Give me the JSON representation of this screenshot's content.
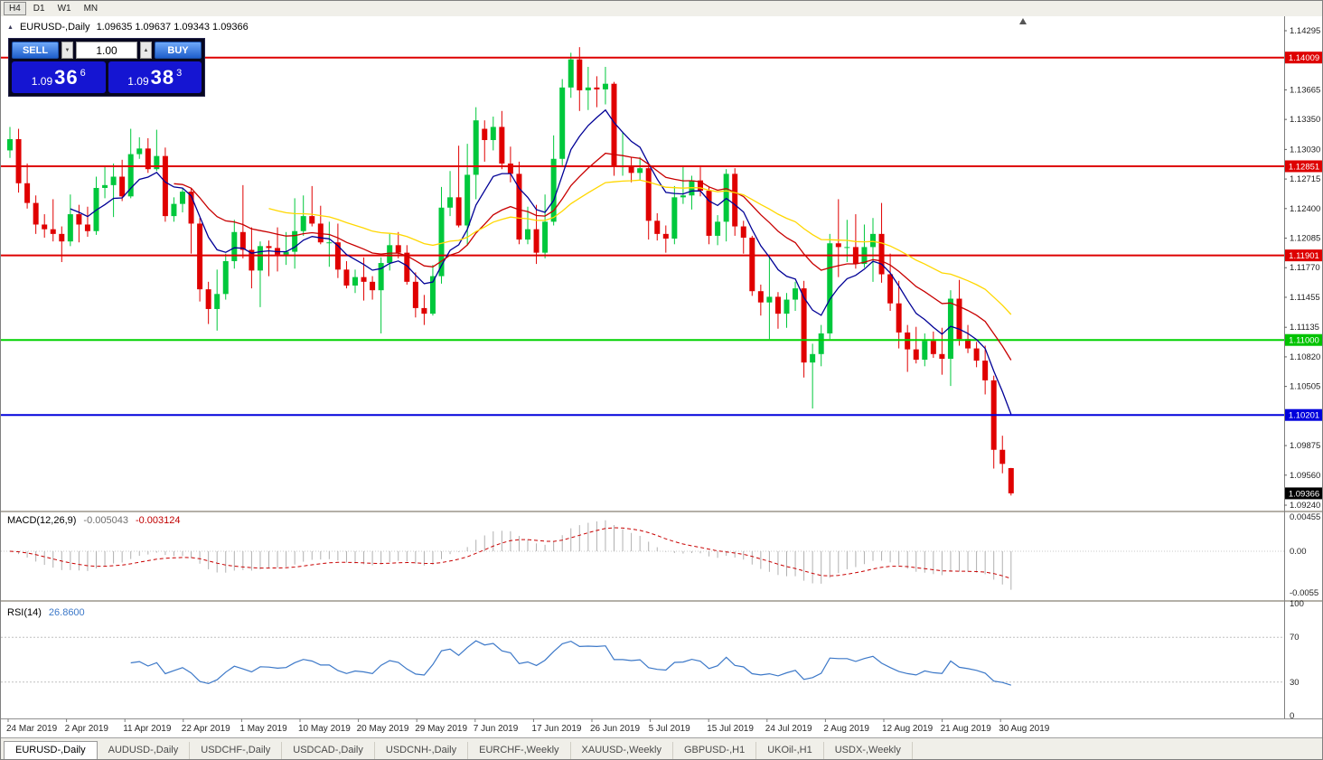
{
  "toolbar": {
    "timeframes": [
      {
        "label": "H4",
        "active": true
      },
      {
        "label": "D1",
        "active": false
      },
      {
        "label": "W1",
        "active": false
      },
      {
        "label": "MN",
        "active": false
      }
    ]
  },
  "icons": {
    "panel_collapse": "▲",
    "volume_down": "▼",
    "volume_up": "▲"
  },
  "chart": {
    "title": {
      "symbol_period": "EURUSD-,Daily",
      "ohlc": "1.09635 1.09637 1.09343 1.09366"
    }
  },
  "trade_panel": {
    "sell_label": "SELL",
    "buy_label": "BUY",
    "volume": "1.00",
    "bid": {
      "big": "1.09",
      "pips": "36",
      "pipette": "6"
    },
    "ask": {
      "big": "1.09",
      "pips": "38",
      "pipette": "3"
    }
  },
  "indicators": {
    "macd": {
      "name": "MACD(12,26,9)",
      "value_main": "-0.005043",
      "value_signal": "-0.003124"
    },
    "rsi": {
      "name": "RSI(14)",
      "value": "26.8600"
    }
  },
  "price_axis": {
    "ticks": [
      "1.14295",
      "1.13665",
      "1.13350",
      "1.13030",
      "1.12715",
      "1.12400",
      "1.12085",
      "1.11770",
      "1.11455",
      "1.11135",
      "1.10820",
      "1.10505",
      "1.09875",
      "1.09560",
      "1.09240"
    ],
    "badges": [
      {
        "label": "1.14009",
        "price": 1.14009,
        "bg": "#DE0000",
        "fg": "#ffffff"
      },
      {
        "label": "1.12851",
        "price": 1.12851,
        "bg": "#DE0000",
        "fg": "#ffffff"
      },
      {
        "label": "1.11901",
        "price": 1.11901,
        "bg": "#DE0000",
        "fg": "#ffffff"
      },
      {
        "label": "1.11000",
        "price": 1.11,
        "bg": "#00C300",
        "fg": "#ffffff"
      },
      {
        "label": "1.10201",
        "price": 1.10201,
        "bg": "#0000DC",
        "fg": "#ffffff"
      },
      {
        "label": "1.09366",
        "price": 1.09366,
        "bg": "#000000",
        "fg": "#ffffff"
      }
    ]
  },
  "indicator_axes": {
    "macd": [
      {
        "label": "0.00455",
        "value": 0.00455
      },
      {
        "label": "0.00",
        "value": 0
      },
      {
        "label": "-0.0055",
        "value": -0.0055
      }
    ],
    "rsi": [
      {
        "label": "100",
        "value": 100
      },
      {
        "label": "70",
        "value": 70
      },
      {
        "label": "30",
        "value": 30
      },
      {
        "label": "0",
        "value": 0
      }
    ]
  },
  "time_axis": {
    "labels": [
      "24 Mar 2019",
      "2 Apr 2019",
      "11 Apr 2019",
      "22 Apr 2019",
      "1 May 2019",
      "10 May 2019",
      "20 May 2019",
      "29 May 2019",
      "7 Jun 2019",
      "17 Jun 2019",
      "26 Jun 2019",
      "5 Jul 2019",
      "15 Jul 2019",
      "24 Jul 2019",
      "2 Aug 2019",
      "12 Aug 2019",
      "21 Aug 2019",
      "30 Aug 2019"
    ]
  },
  "tabs": [
    {
      "label": "EURUSD-,Daily",
      "active": true
    },
    {
      "label": "AUDUSD-,Daily",
      "active": false
    },
    {
      "label": "USDCHF-,Daily",
      "active": false
    },
    {
      "label": "USDCAD-,Daily",
      "active": false
    },
    {
      "label": "USDCNH-,Daily",
      "active": false
    },
    {
      "label": "EURCHF-,Weekly",
      "active": false
    },
    {
      "label": "XAUUSD-,Weekly",
      "active": false
    },
    {
      "label": "GBPUSD-,H1",
      "active": false
    },
    {
      "label": "UKOil-,H1",
      "active": false
    },
    {
      "label": "USDX-,Weekly",
      "active": false
    }
  ],
  "chart_data": {
    "type": "candlestick",
    "symbol": "EURUSD-",
    "timeframe": "Daily",
    "ylim": [
      1.09192,
      1.14449
    ],
    "up_color": "#00C83C",
    "down_color": "#E00000",
    "levels": [
      {
        "price": 1.14009,
        "color": "#DE0000",
        "width": 2
      },
      {
        "price": 1.12851,
        "color": "#DE0000",
        "width": 2
      },
      {
        "price": 1.11901,
        "color": "#DE0000",
        "width": 2
      },
      {
        "price": 1.11,
        "color": "#00D200",
        "width": 2
      },
      {
        "price": 1.10201,
        "color": "#0000DC",
        "width": 2
      }
    ],
    "moving_averages": [
      {
        "period": 8,
        "color": "#000096",
        "draw_from": 7
      },
      {
        "period": 20,
        "color": "#C80000",
        "draw_from": 19
      },
      {
        "period": 40,
        "color": "#FFD700",
        "draw_from": 30
      }
    ],
    "macd": {
      "fast": 12,
      "slow": 26,
      "signal": 9,
      "hist_color": "#b0b0b0",
      "signal_color": "#C80000"
    },
    "rsi": {
      "period": 14,
      "color": "#3C78C8",
      "levels": [
        70,
        30
      ]
    },
    "candles": [
      [
        1.1302,
        1.1327,
        1.1294,
        1.1314
      ],
      [
        1.1314,
        1.1325,
        1.1257,
        1.1267
      ],
      [
        1.1267,
        1.1288,
        1.124,
        1.1246
      ],
      [
        1.1246,
        1.1254,
        1.1213,
        1.1223
      ],
      [
        1.1223,
        1.1234,
        1.1209,
        1.1218
      ],
      [
        1.1218,
        1.125,
        1.1205,
        1.1213
      ],
      [
        1.1213,
        1.1221,
        1.1183,
        1.1205
      ],
      [
        1.1205,
        1.1255,
        1.12,
        1.1234
      ],
      [
        1.1234,
        1.1244,
        1.1204,
        1.1223
      ],
      [
        1.1223,
        1.1242,
        1.121,
        1.1216
      ],
      [
        1.1216,
        1.1274,
        1.1212,
        1.1262
      ],
      [
        1.1262,
        1.1285,
        1.1251,
        1.1265
      ],
      [
        1.1265,
        1.1288,
        1.1231,
        1.1274
      ],
      [
        1.1274,
        1.1292,
        1.1248,
        1.1253
      ],
      [
        1.1253,
        1.1325,
        1.1251,
        1.1298
      ],
      [
        1.1298,
        1.1316,
        1.1293,
        1.1304
      ],
      [
        1.1304,
        1.1315,
        1.1278,
        1.1282
      ],
      [
        1.1282,
        1.1324,
        1.128,
        1.1296
      ],
      [
        1.1296,
        1.1305,
        1.1226,
        1.1232
      ],
      [
        1.1232,
        1.1252,
        1.1226,
        1.1245
      ],
      [
        1.1245,
        1.1262,
        1.1236,
        1.1258
      ],
      [
        1.1258,
        1.1262,
        1.1192,
        1.1224
      ],
      [
        1.1224,
        1.123,
        1.1141,
        1.1154
      ],
      [
        1.1154,
        1.1162,
        1.1117,
        1.1133
      ],
      [
        1.1133,
        1.1175,
        1.111,
        1.1149
      ],
      [
        1.1149,
        1.1192,
        1.1143,
        1.1184
      ],
      [
        1.1184,
        1.1228,
        1.1176,
        1.1215
      ],
      [
        1.1215,
        1.1265,
        1.1187,
        1.1196
      ],
      [
        1.1196,
        1.122,
        1.1155,
        1.1174
      ],
      [
        1.1174,
        1.1205,
        1.1135,
        1.12
      ],
      [
        1.12,
        1.1206,
        1.1168,
        1.1198
      ],
      [
        1.1198,
        1.122,
        1.1173,
        1.1191
      ],
      [
        1.1191,
        1.1215,
        1.118,
        1.1194
      ],
      [
        1.1194,
        1.1251,
        1.1176,
        1.1216
      ],
      [
        1.1216,
        1.1254,
        1.1211,
        1.1232
      ],
      [
        1.1232,
        1.1264,
        1.1221,
        1.1224
      ],
      [
        1.1224,
        1.1243,
        1.1202,
        1.1204
      ],
      [
        1.1204,
        1.1226,
        1.1178,
        1.1204
      ],
      [
        1.1204,
        1.1224,
        1.1166,
        1.1175
      ],
      [
        1.1175,
        1.1184,
        1.1155,
        1.1158
      ],
      [
        1.1158,
        1.1175,
        1.115,
        1.1167
      ],
      [
        1.1167,
        1.1188,
        1.1142,
        1.1162
      ],
      [
        1.1162,
        1.1168,
        1.1143,
        1.1153
      ],
      [
        1.1153,
        1.1188,
        1.1107,
        1.1182
      ],
      [
        1.1182,
        1.1213,
        1.1174,
        1.1201
      ],
      [
        1.1201,
        1.1215,
        1.1187,
        1.1193
      ],
      [
        1.1193,
        1.1201,
        1.1159,
        1.1162
      ],
      [
        1.1162,
        1.1172,
        1.1124,
        1.1134
      ],
      [
        1.1134,
        1.1148,
        1.1116,
        1.1128
      ],
      [
        1.1128,
        1.118,
        1.1126,
        1.1168
      ],
      [
        1.1168,
        1.1263,
        1.116,
        1.1241
      ],
      [
        1.1241,
        1.128,
        1.1232,
        1.1252
      ],
      [
        1.1252,
        1.1307,
        1.122,
        1.1222
      ],
      [
        1.1222,
        1.1309,
        1.1201,
        1.1276
      ],
      [
        1.1276,
        1.1348,
        1.125,
        1.1334
      ],
      [
        1.1325,
        1.1334,
        1.129,
        1.1313
      ],
      [
        1.1313,
        1.1338,
        1.1302,
        1.1327
      ],
      [
        1.1327,
        1.1344,
        1.1282,
        1.1288
      ],
      [
        1.1288,
        1.1306,
        1.1268,
        1.1277
      ],
      [
        1.1277,
        1.129,
        1.1202,
        1.1207
      ],
      [
        1.1207,
        1.1242,
        1.1202,
        1.1218
      ],
      [
        1.1218,
        1.1244,
        1.1181,
        1.1193
      ],
      [
        1.1193,
        1.1255,
        1.1187,
        1.1226
      ],
      [
        1.1226,
        1.1318,
        1.1222,
        1.1293
      ],
      [
        1.1293,
        1.1378,
        1.1285,
        1.1369
      ],
      [
        1.1369,
        1.1406,
        1.1358,
        1.1399
      ],
      [
        1.1399,
        1.1412,
        1.1344,
        1.1366
      ],
      [
        1.1366,
        1.1391,
        1.1345,
        1.1369
      ],
      [
        1.1369,
        1.1381,
        1.1348,
        1.1367
      ],
      [
        1.1367,
        1.1391,
        1.1351,
        1.1373
      ],
      [
        1.1373,
        1.1375,
        1.1275,
        1.1285
      ],
      [
        1.1285,
        1.1322,
        1.1275,
        1.1285
      ],
      [
        1.1285,
        1.1295,
        1.1268,
        1.1278
      ],
      [
        1.1278,
        1.1295,
        1.127,
        1.1283
      ],
      [
        1.1283,
        1.1288,
        1.1207,
        1.1227
      ],
      [
        1.1227,
        1.1235,
        1.1206,
        1.1213
      ],
      [
        1.1213,
        1.1222,
        1.1193,
        1.1208
      ],
      [
        1.1208,
        1.1264,
        1.1202,
        1.1252
      ],
      [
        1.1252,
        1.1286,
        1.1245,
        1.1254
      ],
      [
        1.1254,
        1.1275,
        1.1239,
        1.127
      ],
      [
        1.127,
        1.1284,
        1.1253,
        1.1259
      ],
      [
        1.1259,
        1.1263,
        1.1202,
        1.1211
      ],
      [
        1.1211,
        1.1233,
        1.1201,
        1.1226
      ],
      [
        1.1226,
        1.1282,
        1.1205,
        1.1277
      ],
      [
        1.1277,
        1.1283,
        1.1211,
        1.1221
      ],
      [
        1.1221,
        1.1227,
        1.1192,
        1.1209
      ],
      [
        1.1209,
        1.1211,
        1.1147,
        1.1152
      ],
      [
        1.1152,
        1.1159,
        1.1126,
        1.114
      ],
      [
        1.114,
        1.1188,
        1.1101,
        1.1146
      ],
      [
        1.1146,
        1.1151,
        1.1112,
        1.1128
      ],
      [
        1.1128,
        1.115,
        1.1113,
        1.1143
      ],
      [
        1.1143,
        1.1162,
        1.1131,
        1.1155
      ],
      [
        1.1155,
        1.1163,
        1.106,
        1.1076
      ],
      [
        1.1076,
        1.1096,
        1.1027,
        1.1085
      ],
      [
        1.1085,
        1.1116,
        1.1072,
        1.1107
      ],
      [
        1.1107,
        1.1213,
        1.1101,
        1.1203
      ],
      [
        1.1203,
        1.125,
        1.1167,
        1.1199
      ],
      [
        1.1199,
        1.1228,
        1.1183,
        1.1199
      ],
      [
        1.1199,
        1.1234,
        1.1176,
        1.1181
      ],
      [
        1.1181,
        1.1223,
        1.1177,
        1.1199
      ],
      [
        1.1199,
        1.123,
        1.1162,
        1.1213
      ],
      [
        1.1213,
        1.1246,
        1.1161,
        1.117
      ],
      [
        1.117,
        1.1192,
        1.1131,
        1.1139
      ],
      [
        1.1139,
        1.1163,
        1.1091,
        1.1108
      ],
      [
        1.1108,
        1.1116,
        1.1066,
        1.109
      ],
      [
        1.109,
        1.1114,
        1.1075,
        1.1079
      ],
      [
        1.1079,
        1.1107,
        1.1072,
        1.1099
      ],
      [
        1.1099,
        1.1109,
        1.1081,
        1.1085
      ],
      [
        1.1085,
        1.1113,
        1.1063,
        1.108
      ],
      [
        1.108,
        1.1153,
        1.1051,
        1.1144
      ],
      [
        1.1144,
        1.1164,
        1.1094,
        1.1101
      ],
      [
        1.1101,
        1.1116,
        1.1086,
        1.1091
      ],
      [
        1.1091,
        1.1098,
        1.1071,
        1.1078
      ],
      [
        1.1078,
        1.1094,
        1.1042,
        1.1057
      ],
      [
        1.1057,
        1.1062,
        1.0963,
        1.0983
      ],
      [
        1.0983,
        1.0998,
        1.0958,
        1.0968
      ],
      [
        1.09635,
        1.09637,
        1.09343,
        1.09366
      ]
    ]
  }
}
